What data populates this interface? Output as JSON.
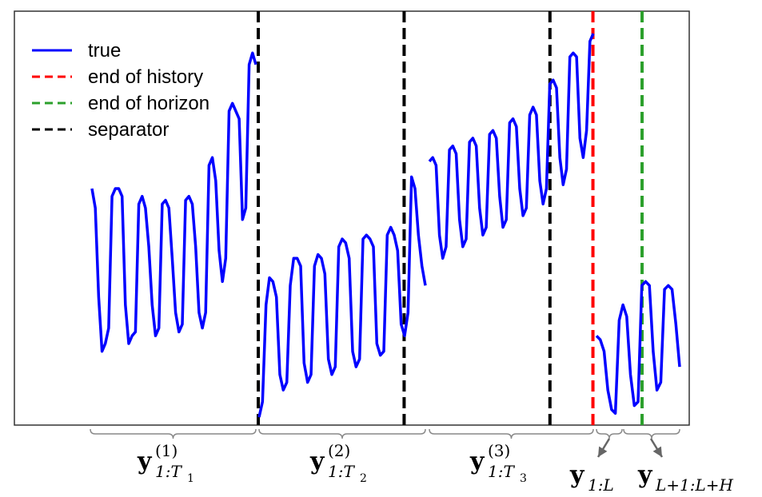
{
  "chart_data": {
    "type": "line",
    "grid": false,
    "legend_position": "top-left",
    "legend": [
      {
        "label": "true",
        "color": "#0000ff",
        "style": "solid"
      },
      {
        "label": "end of history",
        "color": "#ff0000",
        "style": "dashed"
      },
      {
        "label": "end of horizon",
        "color": "#2ca02c",
        "style": "dashed"
      },
      {
        "label": "separator",
        "color": "#000000",
        "style": "dashed"
      }
    ],
    "series": [
      {
        "name": "true",
        "color": "#0000ff",
        "segment": 1,
        "y": [
          0.6,
          0.55,
          0.32,
          0.18,
          0.2,
          0.24,
          0.58,
          0.6,
          0.6,
          0.58,
          0.3,
          0.2,
          0.22,
          0.23,
          0.56,
          0.58,
          0.55,
          0.45,
          0.3,
          0.22,
          0.24,
          0.56,
          0.57,
          0.55,
          0.42,
          0.28,
          0.23,
          0.25,
          0.57,
          0.58,
          0.56,
          0.45,
          0.28,
          0.24,
          0.28,
          0.66,
          0.68,
          0.62,
          0.44,
          0.36,
          0.42,
          0.8,
          0.82,
          0.8,
          0.78,
          0.52,
          0.55,
          0.92,
          0.95,
          0.92
        ]
      },
      {
        "name": "true",
        "color": "#0000ff",
        "segment": 2,
        "y": [
          0.01,
          0.05,
          0.3,
          0.37,
          0.36,
          0.32,
          0.12,
          0.08,
          0.1,
          0.35,
          0.42,
          0.42,
          0.4,
          0.15,
          0.1,
          0.12,
          0.4,
          0.43,
          0.42,
          0.38,
          0.16,
          0.12,
          0.14,
          0.45,
          0.47,
          0.46,
          0.42,
          0.18,
          0.14,
          0.16,
          0.47,
          0.48,
          0.47,
          0.45,
          0.2,
          0.17,
          0.18,
          0.48,
          0.5,
          0.48,
          0.44,
          0.25,
          0.22,
          0.28,
          0.63,
          0.6,
          0.48,
          0.4,
          0.35
        ]
      },
      {
        "name": "true",
        "color": "#0000ff",
        "segment": 3,
        "y": [
          0.67,
          0.68,
          0.66,
          0.48,
          0.42,
          0.45,
          0.7,
          0.71,
          0.69,
          0.52,
          0.45,
          0.47,
          0.72,
          0.73,
          0.71,
          0.55,
          0.48,
          0.5,
          0.74,
          0.75,
          0.73,
          0.58,
          0.5,
          0.52,
          0.77,
          0.78,
          0.76,
          0.6,
          0.53,
          0.55,
          0.79,
          0.81,
          0.79,
          0.62,
          0.56,
          0.6,
          0.87,
          0.88,
          0.86,
          0.68,
          0.61,
          0.65,
          0.94,
          0.95,
          0.94,
          0.73,
          0.68,
          0.75,
          0.98,
          1.0
        ]
      },
      {
        "name": "true",
        "color": "#0000ff",
        "segment": 4,
        "y": [
          0.22,
          0.21,
          0.18,
          0.08,
          0.03,
          0.02,
          0.26,
          0.3,
          0.27,
          0.12,
          0.04,
          0.05,
          0.35,
          0.36,
          0.35,
          0.18,
          0.08,
          0.1,
          0.34,
          0.35,
          0.34,
          0.25,
          0.14
        ]
      }
    ],
    "markers": [
      {
        "name": "separator",
        "color": "#000000",
        "style": "dashed",
        "position": 0.0
      },
      {
        "name": "separator",
        "color": "#000000",
        "style": "dashed",
        "position": 0.3455
      },
      {
        "name": "separator",
        "color": "#000000",
        "style": "dashed",
        "position": 0.6909
      },
      {
        "name": "end of history",
        "color": "#ff0000",
        "style": "dashed",
        "position": 0.7927
      },
      {
        "name": "end of horizon",
        "color": "#2ca02c",
        "style": "dashed",
        "position": 0.9091
      }
    ],
    "braces": [
      {
        "main": "y",
        "sup": "(1)",
        "sub": "1:T",
        "subsub": "1"
      },
      {
        "main": "y",
        "sup": "(2)",
        "sub": "1:T",
        "subsub": "2"
      },
      {
        "main": "y",
        "sup": "(3)",
        "sub": "1:T",
        "subsub": "3"
      },
      {
        "main": "y",
        "sup": "",
        "sub": "1:L",
        "subsub": ""
      },
      {
        "main": "y",
        "sup": "",
        "sub": "L+1:L+H",
        "subsub": ""
      }
    ]
  }
}
